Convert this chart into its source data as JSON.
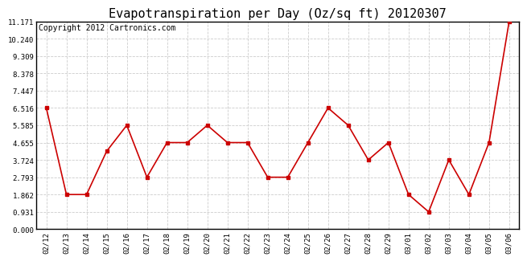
{
  "title": "Evapotranspiration per Day (Oz/sq ft) 20120307",
  "copyright": "Copyright 2012 Cartronics.com",
  "dates": [
    "02/12",
    "02/13",
    "02/14",
    "02/15",
    "02/16",
    "02/17",
    "02/18",
    "02/19",
    "02/20",
    "02/21",
    "02/22",
    "02/23",
    "02/24",
    "02/25",
    "02/26",
    "02/27",
    "02/28",
    "02/29",
    "03/01",
    "03/02",
    "03/03",
    "03/04",
    "03/05",
    "03/06"
  ],
  "values": [
    6.516,
    1.862,
    1.862,
    4.19,
    5.585,
    2.793,
    4.655,
    4.655,
    5.585,
    4.655,
    4.655,
    2.793,
    2.793,
    4.655,
    6.516,
    5.585,
    3.724,
    4.655,
    1.862,
    0.931,
    3.724,
    1.862,
    4.655,
    11.171
  ],
  "line_color": "#cc0000",
  "marker_color": "#cc0000",
  "bg_color": "#ffffff",
  "grid_color": "#cccccc",
  "yticks": [
    0.0,
    0.931,
    1.862,
    2.793,
    3.724,
    4.655,
    5.585,
    6.516,
    7.447,
    8.378,
    9.309,
    10.24,
    11.171
  ],
  "ylim": [
    0.0,
    11.171
  ],
  "title_fontsize": 11,
  "copyright_fontsize": 7
}
